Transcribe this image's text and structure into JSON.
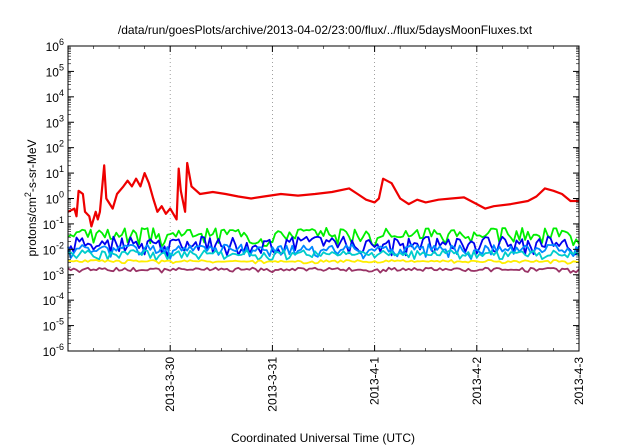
{
  "chart_data": {
    "type": "line",
    "title": "/data/run/goesPlots/archive/2013-04-02/23:00/flux/../flux/5daysMoonFluxes.txt",
    "xlabel": "Coordinated Universal Time (UTC)",
    "ylabel_parts": [
      "protons/cm",
      "2",
      "-s-sr-MeV"
    ],
    "y_scale": "log",
    "ylim_exp": [
      -6,
      6
    ],
    "y_ticks": [
      {
        "base": "10",
        "exp": "-6"
      },
      {
        "base": "10",
        "exp": "-5"
      },
      {
        "base": "10",
        "exp": "-4"
      },
      {
        "base": "10",
        "exp": "-3"
      },
      {
        "base": "10",
        "exp": "-2"
      },
      {
        "base": "10",
        "exp": "-1"
      },
      {
        "base": "10",
        "exp": "0"
      },
      {
        "base": "10",
        "exp": "1"
      },
      {
        "base": "10",
        "exp": "2"
      },
      {
        "base": "10",
        "exp": "3"
      },
      {
        "base": "10",
        "exp": "4"
      },
      {
        "base": "10",
        "exp": "5"
      },
      {
        "base": "10",
        "exp": "6"
      }
    ],
    "xlim": [
      "2013-03-29T00:00",
      "2013-04-03T00:00"
    ],
    "x_tick_labels": [
      "2013-3-30",
      "2013-3-31",
      "2013-4-1",
      "2013-4-2",
      "2013-4-3"
    ],
    "x_tick_dates": [
      "2013-03-30T00:00",
      "2013-03-31T00:00",
      "2013-04-01T00:00",
      "2013-04-02T00:00",
      "2013-04-03T00:00"
    ],
    "grid": true,
    "x_grid_dates": [
      "2013-03-30T00:00",
      "2013-03-31T00:00",
      "2013-04-01T00:00",
      "2013-04-02T00:00"
    ],
    "series": [
      {
        "color": "#ee0000",
        "points": [
          [
            "2013-03-29T00:00",
            0.3
          ],
          [
            "2013-03-29T01:30",
            0.4
          ],
          [
            "2013-03-29T02:00",
            0.2
          ],
          [
            "2013-03-29T02:30",
            2.0
          ],
          [
            "2013-03-29T03:30",
            1.5
          ],
          [
            "2013-03-29T04:00",
            0.3
          ],
          [
            "2013-03-29T05:00",
            0.2
          ],
          [
            "2013-03-29T05:30",
            0.08
          ],
          [
            "2013-03-29T06:30",
            0.3
          ],
          [
            "2013-03-29T07:00",
            0.15
          ],
          [
            "2013-03-29T07:30",
            0.3
          ],
          [
            "2013-03-29T08:30",
            20
          ],
          [
            "2013-03-29T09:00",
            1.0
          ],
          [
            "2013-03-29T10:30",
            0.4
          ],
          [
            "2013-03-29T11:30",
            1.5
          ],
          [
            "2013-03-29T13:00",
            3.0
          ],
          [
            "2013-03-29T14:00",
            5.0
          ],
          [
            "2013-03-29T15:00",
            3.0
          ],
          [
            "2013-03-29T16:00",
            6.0
          ],
          [
            "2013-03-29T17:00",
            3.0
          ],
          [
            "2013-03-29T18:00",
            10
          ],
          [
            "2013-03-29T19:00",
            4.0
          ],
          [
            "2013-03-29T20:00",
            1.0
          ],
          [
            "2013-03-29T21:00",
            0.3
          ],
          [
            "2013-03-29T22:00",
            0.5
          ],
          [
            "2013-03-29T23:00",
            0.25
          ],
          [
            "2013-03-30T00:00",
            0.4
          ],
          [
            "2013-03-30T01:30",
            0.15
          ],
          [
            "2013-03-30T02:00",
            15
          ],
          [
            "2013-03-30T02:30",
            2.0
          ],
          [
            "2013-03-30T03:30",
            0.3
          ],
          [
            "2013-03-30T04:00",
            25
          ],
          [
            "2013-03-30T05:00",
            3.0
          ],
          [
            "2013-03-30T07:00",
            1.5
          ],
          [
            "2013-03-30T10:00",
            1.8
          ],
          [
            "2013-03-30T13:00",
            1.5
          ],
          [
            "2013-03-30T16:00",
            1.2
          ],
          [
            "2013-03-30T19:00",
            1.0
          ],
          [
            "2013-03-30T22:00",
            1.2
          ],
          [
            "2013-03-31T02:00",
            1.5
          ],
          [
            "2013-03-31T06:00",
            1.3
          ],
          [
            "2013-03-31T10:00",
            1.5
          ],
          [
            "2013-03-31T14:00",
            1.8
          ],
          [
            "2013-03-31T18:00",
            2.5
          ],
          [
            "2013-03-31T20:00",
            1.5
          ],
          [
            "2013-03-31T22:00",
            0.9
          ],
          [
            "2013-04-01T00:00",
            0.7
          ],
          [
            "2013-04-01T01:00",
            1.0
          ],
          [
            "2013-04-01T02:00",
            6.0
          ],
          [
            "2013-04-01T04:00",
            4.0
          ],
          [
            "2013-04-01T06:00",
            1.0
          ],
          [
            "2013-04-01T08:00",
            0.6
          ],
          [
            "2013-04-01T10:00",
            0.9
          ],
          [
            "2013-04-01T12:00",
            0.7
          ],
          [
            "2013-04-01T15:00",
            0.9
          ],
          [
            "2013-04-01T18:00",
            1.0
          ],
          [
            "2013-04-01T21:00",
            1.1
          ],
          [
            "2013-04-02T00:00",
            0.6
          ],
          [
            "2013-04-02T02:00",
            0.4
          ],
          [
            "2013-04-02T04:00",
            0.5
          ],
          [
            "2013-04-02T08:00",
            0.6
          ],
          [
            "2013-04-02T12:00",
            0.8
          ],
          [
            "2013-04-02T14:00",
            1.2
          ],
          [
            "2013-04-02T16:00",
            2.5
          ],
          [
            "2013-04-02T18:00",
            2.0
          ],
          [
            "2013-04-02T20:00",
            1.5
          ],
          [
            "2013-04-02T22:00",
            0.8
          ],
          [
            "2013-04-03T00:00",
            0.8
          ]
        ]
      },
      {
        "color": "#00ee00",
        "level": 0.05,
        "depth": 0.5,
        "seed": 3
      },
      {
        "color": "#0000ee",
        "level": 0.022,
        "depth": 0.55,
        "seed": 7
      },
      {
        "color": "#0088ff",
        "level": 0.012,
        "depth": 0.4,
        "seed": 11
      },
      {
        "color": "#00cccc",
        "level": 0.0075,
        "depth": 0.3,
        "seed": 19
      },
      {
        "color": "#ffee00",
        "level": 0.0035,
        "depth": 0.12,
        "seed": 23
      },
      {
        "color": "#993366",
        "level": 0.0017,
        "depth": 0.15,
        "seed": 29
      }
    ]
  }
}
